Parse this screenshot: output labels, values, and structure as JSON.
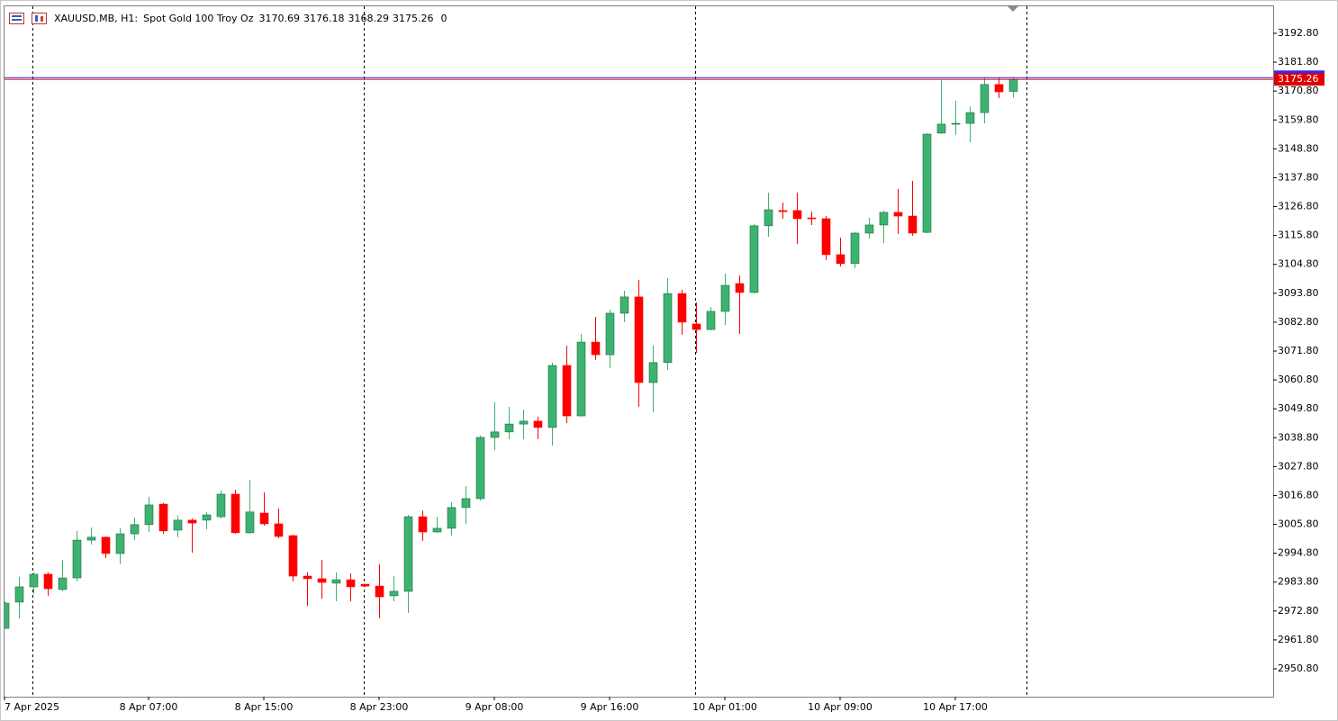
{
  "chart_data": {
    "type": "candlestick",
    "symbol": "XAUUSD.MB, H1:",
    "description": "Spot Gold 100 Troy Oz",
    "volume": 0,
    "categories": [
      "7 Apr 2025",
      null,
      null,
      null,
      null,
      null,
      null,
      null,
      null,
      null,
      "8 Apr 07:00",
      null,
      null,
      null,
      null,
      null,
      null,
      null,
      "8 Apr 15:00",
      null,
      null,
      null,
      null,
      null,
      null,
      null,
      "8 Apr 23:00",
      null,
      null,
      null,
      null,
      null,
      null,
      null,
      "9 Apr 08:00",
      null,
      null,
      null,
      null,
      null,
      null,
      null,
      "9 Apr 16:00",
      null,
      null,
      null,
      null,
      null,
      null,
      null,
      "10 Apr 01:00",
      null,
      null,
      null,
      null,
      null,
      null,
      null,
      "10 Apr 09:00",
      null,
      null,
      null,
      null,
      null,
      null,
      null,
      "10 Apr 17:00",
      null,
      null,
      null,
      null
    ],
    "open": [
      2966.2,
      2976.2,
      2982.0,
      2986.8,
      2981.0,
      2985.4,
      2999.8,
      3000.9,
      2994.7,
      3002.2,
      3005.7,
      3013.5,
      3003.6,
      3007.4,
      3007.4,
      3008.7,
      3017.3,
      3002.6,
      3010.1,
      3006.0,
      3001.5,
      2986.1,
      2985.1,
      2983.4,
      2984.7,
      2983.0,
      2982.3,
      2978.6,
      2980.3,
      3008.7,
      3002.9,
      3004.3,
      3012.2,
      3015.6,
      3038.9,
      3041.0,
      3044.0,
      3045.1,
      3042.7,
      3066.3,
      3047.1,
      3075.2,
      3070.4,
      3086.2,
      3092.4,
      3059.8,
      3067.4,
      3093.7,
      3082.1,
      3080.0,
      3086.9,
      3097.5,
      3094.1,
      3119.5,
      3125.3,
      3125.3,
      3122.5,
      3122.2,
      3108.5,
      3105.1,
      3116.7,
      3119.8,
      3124.6,
      3123.2,
      3117.0,
      3154.8,
      3158.2,
      3158.5,
      3162.6,
      3173.3,
      3170.69
    ],
    "high": [
      2976.5,
      2985.8,
      2987.5,
      2987.5,
      2992.3,
      3003.3,
      3004.6,
      3001.2,
      3004.3,
      3008.4,
      3016.3,
      3013.9,
      3009.1,
      3008.1,
      3010.5,
      3018.7,
      3019.0,
      3022.8,
      3018.0,
      3011.8,
      3001.8,
      2987.5,
      2992.3,
      2987.5,
      2987.1,
      2983.2,
      2990.6,
      2986.1,
      3009.4,
      3011.1,
      3008.7,
      3014.2,
      3020.4,
      3039.6,
      3052.3,
      3050.6,
      3049.5,
      3046.8,
      3067.4,
      3073.9,
      3078.3,
      3084.8,
      3087.6,
      3094.8,
      3098.9,
      3073.9,
      3099.6,
      3095.1,
      3090.3,
      3088.6,
      3101.3,
      3100.6,
      3120.1,
      3132.1,
      3128.4,
      3132.1,
      3124.9,
      3123.2,
      3115.0,
      3117.1,
      3122.5,
      3125.3,
      3133.5,
      3136.6,
      3154.8,
      3175.0,
      3167.1,
      3165.0,
      3175.7,
      3176.0,
      3176.18
    ],
    "low": [
      2966.0,
      2970.0,
      2979.3,
      2978.6,
      2980.3,
      2984.1,
      2998.1,
      2993.0,
      2990.6,
      2999.8,
      3002.9,
      3002.2,
      3000.9,
      2995.0,
      3003.9,
      3008.1,
      3002.2,
      3002.2,
      3005.3,
      3000.5,
      2984.1,
      2974.8,
      2977.5,
      2976.5,
      2976.5,
      2982.0,
      2970.0,
      2976.5,
      2972.1,
      2999.5,
      3002.6,
      3001.5,
      3006.0,
      3014.9,
      3034.1,
      3038.2,
      3038.2,
      3038.2,
      3035.8,
      3044.4,
      3047.0,
      3068.4,
      3065.3,
      3082.8,
      3050.6,
      3048.5,
      3064.6,
      3078.0,
      3071.1,
      3079.7,
      3081.7,
      3078.3,
      3093.7,
      3115.3,
      3122.2,
      3112.6,
      3119.8,
      3106.4,
      3104.0,
      3103.3,
      3114.7,
      3112.9,
      3116.4,
      3115.7,
      3116.7,
      3154.5,
      3154.1,
      3151.3,
      3158.5,
      3168.1,
      3168.29
    ],
    "close": [
      2975.8,
      2982.0,
      2986.8,
      2981.3,
      2985.4,
      2999.8,
      3000.9,
      2994.7,
      3002.2,
      3005.7,
      3013.2,
      3003.3,
      3007.4,
      3006.3,
      3009.4,
      3017.3,
      3002.6,
      3010.5,
      3006.0,
      3001.2,
      2986.1,
      2985.1,
      2983.7,
      2984.7,
      2982.0,
      2982.3,
      2978.2,
      2980.3,
      3008.7,
      3002.9,
      3004.3,
      3012.2,
      3015.6,
      3038.9,
      3041.0,
      3044.0,
      3045.1,
      3042.7,
      3066.3,
      3047.1,
      3075.2,
      3070.4,
      3086.2,
      3092.4,
      3059.8,
      3067.4,
      3093.7,
      3082.8,
      3080.0,
      3086.9,
      3096.8,
      3094.1,
      3119.5,
      3125.6,
      3124.9,
      3122.2,
      3122.2,
      3108.5,
      3105.1,
      3116.7,
      3119.8,
      3124.6,
      3123.2,
      3116.7,
      3154.4,
      3158.2,
      3158.5,
      3162.6,
      3173.3,
      3170.5,
      3175.26
    ],
    "up_color": "#3cb371",
    "down_color": "#ff0000",
    "ask": 3175.9,
    "ask_line_color": "#2a2aff",
    "bid_line_color": "#e00000",
    "ylim": [
      2940.17,
      3203.08
    ],
    "yticks": [
      {
        "value": 2950.8,
        "label": "2950.80"
      },
      {
        "value": 2961.8,
        "label": "2961.80"
      },
      {
        "value": 2972.8,
        "label": "2972.80"
      },
      {
        "value": 2983.8,
        "label": "2983.80"
      },
      {
        "value": 2994.8,
        "label": "2994.80"
      },
      {
        "value": 3005.8,
        "label": "3005.80"
      },
      {
        "value": 3016.8,
        "label": "3016.80"
      },
      {
        "value": 3027.8,
        "label": "3027.80"
      },
      {
        "value": 3038.8,
        "label": "3038.80"
      },
      {
        "value": 3049.8,
        "label": "3049.80"
      },
      {
        "value": 3060.8,
        "label": "3060.80"
      },
      {
        "value": 3071.8,
        "label": "3071.80"
      },
      {
        "value": 3082.8,
        "label": "3082.80"
      },
      {
        "value": 3093.8,
        "label": "3093.80"
      },
      {
        "value": 3104.8,
        "label": "3104.80"
      },
      {
        "value": 3115.8,
        "label": "3115.80"
      },
      {
        "value": 3126.8,
        "label": "3126.80"
      },
      {
        "value": 3137.8,
        "label": "3137.80"
      },
      {
        "value": 3148.8,
        "label": "3148.80"
      },
      {
        "value": 3159.8,
        "label": "3159.80"
      },
      {
        "value": 3170.8,
        "label": "3170.80"
      },
      {
        "value": 3181.8,
        "label": "3181.80"
      },
      {
        "value": 3192.8,
        "label": "3192.80"
      }
    ],
    "grid": false
  }
}
